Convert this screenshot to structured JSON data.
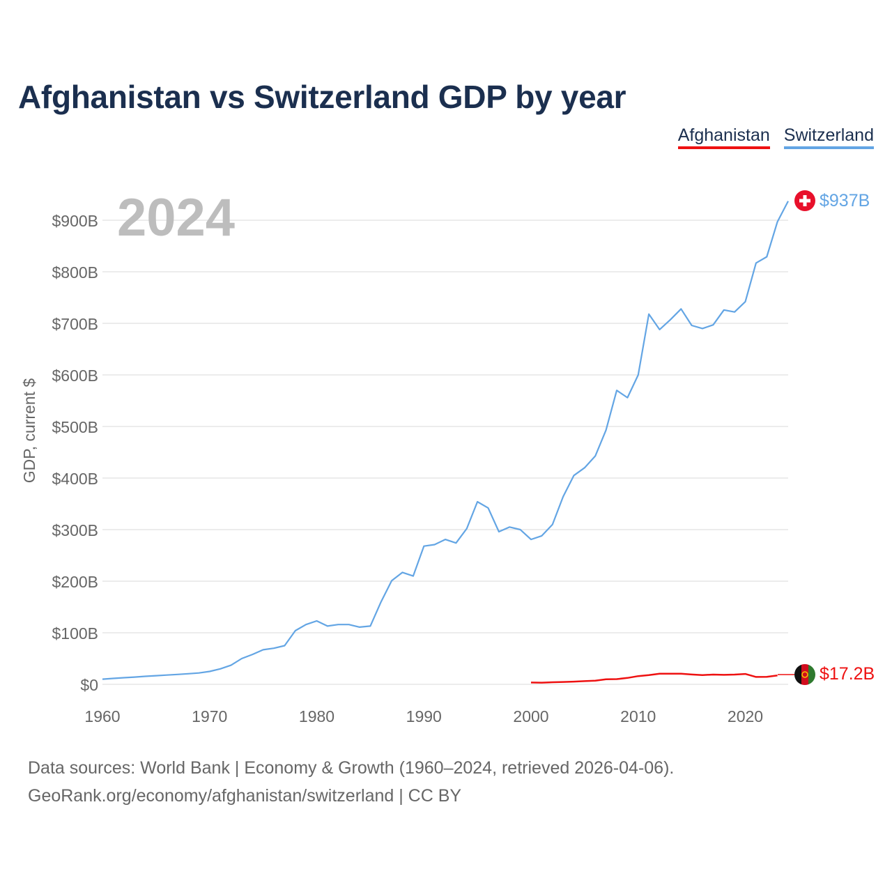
{
  "title": "Afghanistan vs Switzerland GDP by year",
  "legend": [
    {
      "name": "Afghanistan",
      "color": "#ee1111"
    },
    {
      "name": "Switzerland",
      "color": "#63a5e4"
    }
  ],
  "footer": {
    "line1": "Data sources: World Bank | Economy & Growth (1960–2024, retrieved 2026-04-06).",
    "line2": "GeoRank.org/economy/afghanistan/switzerland | CC BY"
  },
  "chart_data": {
    "type": "line",
    "title": "Afghanistan vs Switzerland GDP by year",
    "watermark_year": "2024",
    "xlabel": "",
    "ylabel": "GDP, current $",
    "xlim": [
      1960,
      2024
    ],
    "ylim": [
      0,
      900
    ],
    "y_unit": "billions USD",
    "x_ticks": [
      1960,
      1970,
      1980,
      1990,
      2000,
      2010,
      2020
    ],
    "x_tick_labels": [
      "1960",
      "1970",
      "1980",
      "1990",
      "2000",
      "2010",
      "2020"
    ],
    "y_ticks": [
      0,
      100,
      200,
      300,
      400,
      500,
      600,
      700,
      800,
      900
    ],
    "y_tick_labels": [
      "$0",
      "$100B",
      "$200B",
      "$300B",
      "$400B",
      "$500B",
      "$600B",
      "$700B",
      "$800B",
      "$900B"
    ],
    "grid": true,
    "legend_position": "top-right",
    "series": [
      {
        "name": "Switzerland",
        "color": "#63a5e4",
        "end_label": "$937B",
        "x": [
          1960,
          1961,
          1962,
          1963,
          1964,
          1965,
          1966,
          1967,
          1968,
          1969,
          1970,
          1971,
          1972,
          1973,
          1974,
          1975,
          1976,
          1977,
          1978,
          1979,
          1980,
          1981,
          1982,
          1983,
          1984,
          1985,
          1986,
          1987,
          1988,
          1989,
          1990,
          1991,
          1992,
          1993,
          1994,
          1995,
          1996,
          1997,
          1998,
          1999,
          2000,
          2001,
          2002,
          2003,
          2004,
          2005,
          2006,
          2007,
          2008,
          2009,
          2010,
          2011,
          2012,
          2013,
          2014,
          2015,
          2016,
          2017,
          2018,
          2019,
          2020,
          2021,
          2022,
          2023,
          2024
        ],
        "y": [
          10,
          11.5,
          12.8,
          14,
          15.5,
          16.8,
          18,
          19.2,
          20.5,
          22,
          25,
          30,
          37,
          50,
          58,
          67,
          70,
          75,
          104,
          116,
          123,
          113,
          116,
          116,
          111,
          113,
          160,
          201,
          217,
          210,
          268,
          271,
          281,
          274,
          302,
          354,
          342,
          296,
          305,
          300,
          281,
          288,
          310,
          364,
          405,
          420,
          443,
          493,
          570,
          556,
          600,
          718,
          688,
          707,
          728,
          696,
          690,
          697,
          726,
          722,
          742,
          817,
          829,
          897,
          937
        ]
      },
      {
        "name": "Afghanistan",
        "color": "#ee1111",
        "end_label": "$17.2B",
        "x": [
          2000,
          2001,
          2002,
          2003,
          2004,
          2005,
          2006,
          2007,
          2008,
          2009,
          2010,
          2011,
          2012,
          2013,
          2014,
          2015,
          2016,
          2017,
          2018,
          2019,
          2020,
          2021,
          2022,
          2023
        ],
        "y": [
          3.5,
          3.3,
          4.1,
          4.6,
          5.3,
          6.2,
          7,
          9.7,
          10.2,
          12.4,
          15.9,
          18,
          20.5,
          20.6,
          20.5,
          19.1,
          18,
          18.9,
          18.4,
          18.9,
          20.1,
          14.3,
          14.5,
          17.2
        ]
      }
    ]
  }
}
